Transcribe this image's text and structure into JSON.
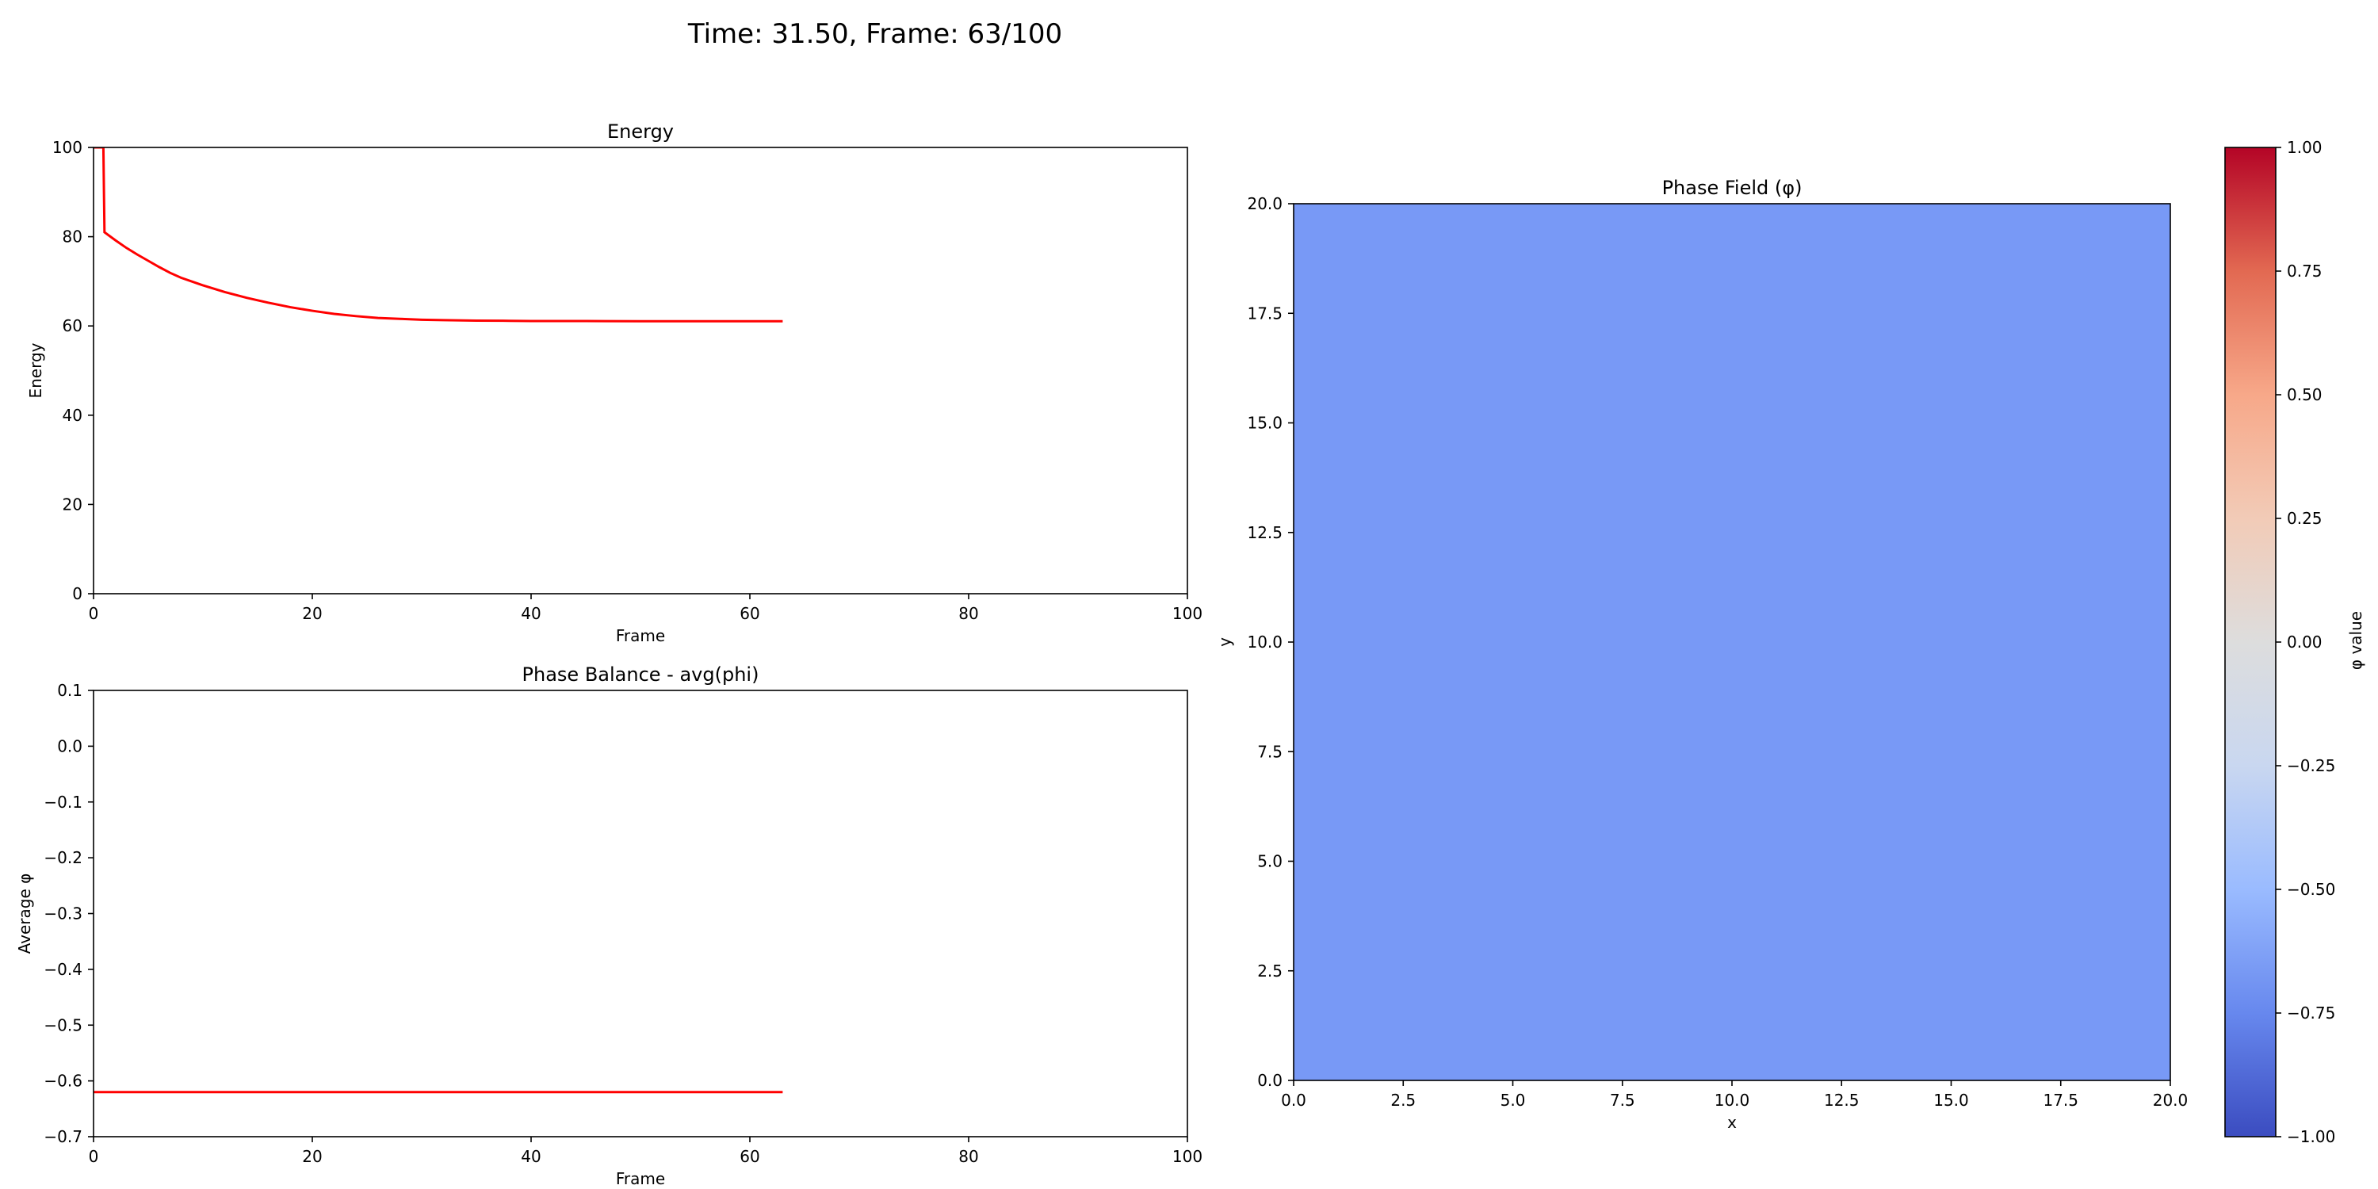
{
  "suptitle": "Time: 31.50, Frame: 63/100",
  "chart_data": [
    {
      "type": "line",
      "title": "Energy",
      "xlabel": "Frame",
      "ylabel": "Energy",
      "xlim": [
        0,
        100
      ],
      "ylim": [
        0,
        100
      ],
      "xticks": [
        0,
        20,
        40,
        60,
        80,
        100
      ],
      "yticks": [
        0,
        20,
        40,
        60,
        80,
        100
      ],
      "grid": false,
      "series": [
        {
          "color": "#ff0000",
          "x": [
            0,
            0.3,
            0.6,
            0.9,
            1,
            2,
            3,
            4,
            5,
            6,
            7,
            8,
            10,
            12,
            14,
            16,
            18,
            20,
            22,
            24,
            26,
            28,
            30,
            32,
            35,
            38,
            40,
            45,
            50,
            55,
            60,
            63
          ],
          "y": [
            100,
            100,
            100,
            100,
            81,
            79.2,
            77.5,
            76,
            74.6,
            73.2,
            71.9,
            70.8,
            69.1,
            67.6,
            66.3,
            65.2,
            64.2,
            63.4,
            62.7,
            62.2,
            61.8,
            61.6,
            61.4,
            61.3,
            61.2,
            61.15,
            61.1,
            61.1,
            61.05,
            61.05,
            61.05,
            61.05
          ]
        }
      ]
    },
    {
      "type": "line",
      "title": "Phase Balance - avg(phi)",
      "xlabel": "Frame",
      "ylabel": "Average φ",
      "xlim": [
        0,
        100
      ],
      "ylim": [
        -0.7,
        0.1
      ],
      "xticks": [
        0,
        20,
        40,
        60,
        80,
        100
      ],
      "yticks": [
        0.1,
        0.0,
        -0.1,
        -0.2,
        -0.3,
        -0.4,
        -0.5,
        -0.6,
        -0.7
      ],
      "yticklabels": [
        "0.1",
        "0.0",
        "−0.1",
        "−0.2",
        "−0.3",
        "−0.4",
        "−0.5",
        "−0.6",
        "−0.7"
      ],
      "grid": false,
      "series": [
        {
          "color": "#ff0000",
          "x": [
            0,
            63
          ],
          "y": [
            -0.62,
            -0.62
          ]
        }
      ]
    },
    {
      "type": "heatmap",
      "title": "Phase Field (φ)",
      "xlabel": "x",
      "ylabel": "y",
      "xlim": [
        0,
        20
      ],
      "ylim": [
        0,
        20
      ],
      "xticks": [
        "0.0",
        "2.5",
        "5.0",
        "7.5",
        "10.0",
        "12.5",
        "15.0",
        "17.5",
        "20.0"
      ],
      "yticks": [
        "0.0",
        "2.5",
        "5.0",
        "7.5",
        "10.0",
        "12.5",
        "15.0",
        "17.5",
        "20.0"
      ],
      "value": -0.62,
      "fill_color": "#7899f6",
      "colormap": "coolwarm",
      "colorbar": {
        "label": "φ value",
        "vmin": -1,
        "vmax": 1,
        "ticks": [
          1.0,
          0.75,
          0.5,
          0.25,
          0.0,
          -0.25,
          -0.5,
          -0.75,
          -1.0
        ],
        "ticklabels": [
          "1.00",
          "0.75",
          "0.50",
          "0.25",
          "0.00",
          "−0.25",
          "−0.50",
          "−0.75",
          "−1.00"
        ],
        "colors": [
          "#3b4cc0",
          "#6788ee",
          "#9abbff",
          "#c9d7f0",
          "#dddddd",
          "#f2cbb7",
          "#f7a889",
          "#e26952",
          "#b40426"
        ]
      }
    }
  ]
}
